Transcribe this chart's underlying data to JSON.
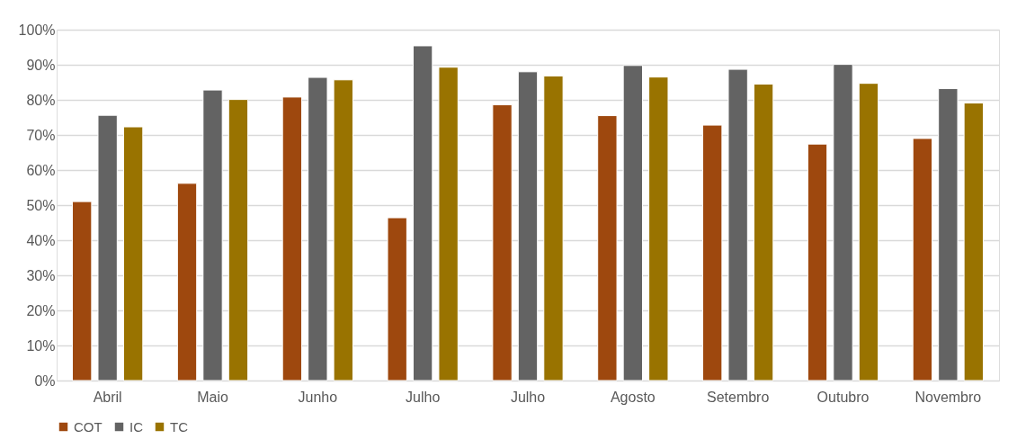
{
  "chart_data": {
    "type": "bar",
    "categories": [
      "Abril",
      "Maio",
      "Junho",
      "Julho",
      "Julho",
      "Agosto",
      "Setembro",
      "Outubro",
      "Novembro"
    ],
    "series": [
      {
        "name": "COT",
        "color": "#9e480e",
        "values": [
          51.0,
          56.2,
          80.8,
          46.4,
          78.6,
          75.5,
          72.8,
          67.4,
          69.0
        ]
      },
      {
        "name": "IC",
        "color": "#636363",
        "values": [
          75.6,
          82.8,
          86.4,
          95.4,
          88.0,
          89.8,
          88.7,
          90.1,
          83.2
        ]
      },
      {
        "name": "TC",
        "color": "#997300",
        "values": [
          72.3,
          80.1,
          85.7,
          89.3,
          86.8,
          86.5,
          84.5,
          84.7,
          79.1
        ]
      }
    ],
    "ylim": [
      0,
      100
    ],
    "yticks": [
      {
        "value": 0,
        "label": "0%"
      },
      {
        "value": 10,
        "label": "10%"
      },
      {
        "value": 20,
        "label": "20%"
      },
      {
        "value": 30,
        "label": "30%"
      },
      {
        "value": 40,
        "label": "40%"
      },
      {
        "value": 50,
        "label": "50%"
      },
      {
        "value": 60,
        "label": "60%"
      },
      {
        "value": 70,
        "label": "70%"
      },
      {
        "value": 80,
        "label": "80%"
      },
      {
        "value": 90,
        "label": "90%"
      },
      {
        "value": 100,
        "label": "100%"
      }
    ],
    "grid": "y",
    "legend": "bottom"
  }
}
